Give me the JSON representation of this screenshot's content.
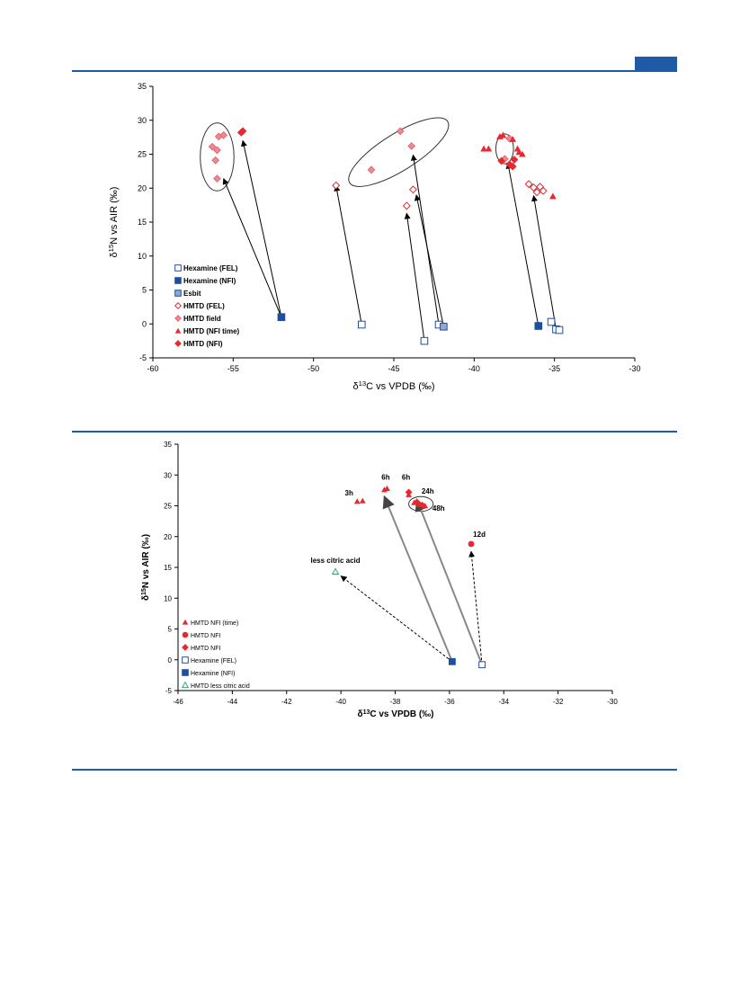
{
  "colors": {
    "accent": "#1f5aa6",
    "red": "#e8272e",
    "pink": "#f08a92",
    "blue": "#1f4e9c",
    "green": "#3aa57a"
  },
  "chart_data": [
    {
      "type": "scatter",
      "title": "",
      "xlabel": "δ13C vs VPDB (‰)",
      "ylabel": "δ15N vs AIR (‰)",
      "xlim": [
        -60,
        -30
      ],
      "ylim": [
        -5,
        35
      ],
      "xticks": [
        -60,
        -55,
        -50,
        -45,
        -40,
        -35,
        -30
      ],
      "yticks": [
        -5,
        0,
        5,
        10,
        15,
        20,
        25,
        30,
        35
      ],
      "grid": false,
      "legend_position": "bottom-left",
      "series": [
        {
          "name": "Hexamine (FEL)",
          "marker": "square-open",
          "color": "#1f4e9c",
          "points": [
            [
              -47.0,
              -0.1
            ],
            [
              -43.1,
              -2.5
            ],
            [
              -42.2,
              -0.1
            ],
            [
              -35.2,
              0.3
            ],
            [
              -34.9,
              -0.8
            ],
            [
              -34.7,
              -0.9
            ]
          ]
        },
        {
          "name": "Hexamine (NFI)",
          "marker": "square-filled",
          "color": "#1f4e9c",
          "points": [
            [
              -52.0,
              1.0
            ],
            [
              -36.0,
              -0.3
            ]
          ]
        },
        {
          "name": "Esbit",
          "marker": "square-hatched",
          "color": "#1f4e9c",
          "points": [
            [
              -41.9,
              -0.4
            ]
          ]
        },
        {
          "name": "HMTD (FEL)",
          "marker": "diamond-open",
          "color": "#e8272e",
          "points": [
            [
              -48.6,
              20.4
            ],
            [
              -43.8,
              19.8
            ],
            [
              -44.2,
              17.4
            ],
            [
              -36.6,
              20.6
            ],
            [
              -36.3,
              20.1
            ],
            [
              -36.1,
              19.4
            ],
            [
              -35.9,
              20.2
            ],
            [
              -35.7,
              19.6
            ]
          ]
        },
        {
          "name": "HMTD field",
          "marker": "diamond-filled",
          "color": "#f08a92",
          "points": [
            [
              -56.3,
              26.1
            ],
            [
              -56.0,
              25.6
            ],
            [
              -56.1,
              24.1
            ],
            [
              -56.0,
              21.4
            ],
            [
              -55.9,
              27.6
            ],
            [
              -55.6,
              27.8
            ],
            [
              -46.4,
              22.7
            ],
            [
              -44.6,
              28.4
            ],
            [
              -43.9,
              26.2
            ],
            [
              -38.1,
              24.3
            ],
            [
              -37.8,
              27.3
            ]
          ]
        },
        {
          "name": "HMTD (NFI time)",
          "marker": "triangle",
          "color": "#e8272e",
          "points": [
            [
              -39.4,
              25.8
            ],
            [
              -39.1,
              25.8
            ],
            [
              -38.4,
              27.6
            ],
            [
              -38.2,
              27.8
            ],
            [
              -37.6,
              27.2
            ],
            [
              -37.3,
              25.8
            ],
            [
              -37.2,
              25.3
            ],
            [
              -37.0,
              25.0
            ],
            [
              -35.1,
              18.8
            ]
          ]
        },
        {
          "name": "HMTD (NFI)",
          "marker": "diamond-filled",
          "color": "#e8272e",
          "points": [
            [
              -54.5,
              28.2
            ],
            [
              -54.4,
              28.4
            ],
            [
              -38.3,
              24.0
            ],
            [
              -37.8,
              23.5
            ],
            [
              -37.6,
              23.2
            ],
            [
              -37.5,
              24.2
            ]
          ]
        }
      ],
      "arrows": [
        {
          "from": [
            -52.0,
            1.0
          ],
          "to": [
            -55.6,
            21.4
          ]
        },
        {
          "from": [
            -52.0,
            1.0
          ],
          "to": [
            -54.4,
            27.0
          ]
        },
        {
          "from": [
            -47.0,
            -0.1
          ],
          "to": [
            -48.6,
            20.4
          ]
        },
        {
          "from": [
            -42.2,
            -0.1
          ],
          "to": [
            -43.8,
            24.9
          ]
        },
        {
          "from": [
            -41.9,
            -0.4
          ],
          "to": [
            -43.6,
            19.0
          ]
        },
        {
          "from": [
            -43.1,
            -2.5
          ],
          "to": [
            -44.2,
            16.3
          ]
        },
        {
          "from": [
            -36.0,
            -0.3
          ],
          "to": [
            -37.9,
            23.7
          ]
        },
        {
          "from": [
            -34.9,
            -0.8
          ],
          "to": [
            -36.3,
            18.9
          ]
        }
      ],
      "ellipses": [
        {
          "center": [
            -56.0,
            24.6
          ],
          "rx": 1.05,
          "ry": 5.0
        },
        {
          "center": [
            -44.7,
            25.3
          ],
          "rx": 3.6,
          "ry": 2.7,
          "rotate_deg": -32
        },
        {
          "center": [
            -38.1,
            25.8
          ],
          "rx": 0.55,
          "ry": 2.2
        }
      ]
    },
    {
      "type": "scatter",
      "title": "",
      "xlabel": "δ13C vs VPDB (‰)",
      "ylabel": "δ15N vs AIR (‰)",
      "xlim": [
        -46,
        -30
      ],
      "ylim": [
        -5,
        35
      ],
      "xticks": [
        -46,
        -44,
        -42,
        -40,
        -38,
        -36,
        -34,
        -32,
        -30
      ],
      "yticks": [
        -5,
        0,
        5,
        10,
        15,
        20,
        25,
        30,
        35
      ],
      "grid": false,
      "legend_position": "bottom-left",
      "series": [
        {
          "name": "HMTD NFI (time)",
          "marker": "triangle",
          "color": "#e8272e",
          "points": [
            [
              -39.4,
              25.7
            ],
            [
              -39.2,
              25.8
            ],
            [
              -38.4,
              27.6
            ],
            [
              -38.3,
              27.8
            ],
            [
              -37.5,
              26.8
            ],
            [
              -37.3,
              25.5
            ],
            [
              -37.1,
              25.2
            ],
            [
              -36.9,
              25.0
            ]
          ]
        },
        {
          "name": "HMTD NFI",
          "marker": "circle-filled",
          "color": "#e8272e",
          "points": [
            [
              -35.2,
              18.8
            ]
          ]
        },
        {
          "name": "HMTD NFI",
          "marker": "diamond-filled",
          "color": "#e8272e",
          "points": [
            [
              -37.5,
              27.2
            ],
            [
              -37.2,
              25.6
            ],
            [
              -37.0,
              25.1
            ]
          ]
        },
        {
          "name": "Hexamine (FEL)",
          "marker": "square-open",
          "color": "#1f4e9c",
          "points": [
            [
              -34.8,
              -0.8
            ]
          ]
        },
        {
          "name": "Hexamine (NFI)",
          "marker": "square-filled",
          "color": "#1f4e9c",
          "points": [
            [
              -35.9,
              -0.3
            ]
          ]
        },
        {
          "name": "HMTD less citric acid",
          "marker": "triangle-open",
          "color": "#3aa57a",
          "points": [
            [
              -40.2,
              14.3
            ]
          ]
        }
      ],
      "annotations": [
        {
          "text": "3h",
          "at": [
            -39.7,
            26.7
          ]
        },
        {
          "text": "6h",
          "at": [
            -38.35,
            29.2
          ]
        },
        {
          "text": "6h",
          "at": [
            -37.6,
            29.2
          ]
        },
        {
          "text": "24h",
          "at": [
            -36.8,
            27.0
          ]
        },
        {
          "text": "48h",
          "at": [
            -36.4,
            24.2
          ]
        },
        {
          "text": "12d",
          "at": [
            -34.9,
            20.0
          ]
        },
        {
          "text": "less citric acid",
          "at": [
            -40.2,
            15.7
          ]
        }
      ],
      "arrows": [
        {
          "from": [
            -35.9,
            -0.3
          ],
          "to": [
            -38.4,
            26.5
          ],
          "style": "solid"
        },
        {
          "from": [
            -34.8,
            -0.8
          ],
          "to": [
            -37.2,
            26.0
          ],
          "style": "solid"
        },
        {
          "from": [
            -35.9,
            -0.3
          ],
          "to": [
            -40.0,
            13.6
          ],
          "style": "dashed"
        },
        {
          "from": [
            -34.8,
            -0.8
          ],
          "to": [
            -35.2,
            17.6
          ],
          "style": "dashed"
        }
      ],
      "ellipses": [
        {
          "center": [
            -37.05,
            25.3
          ],
          "rx": 0.45,
          "ry": 1.2
        }
      ]
    }
  ]
}
